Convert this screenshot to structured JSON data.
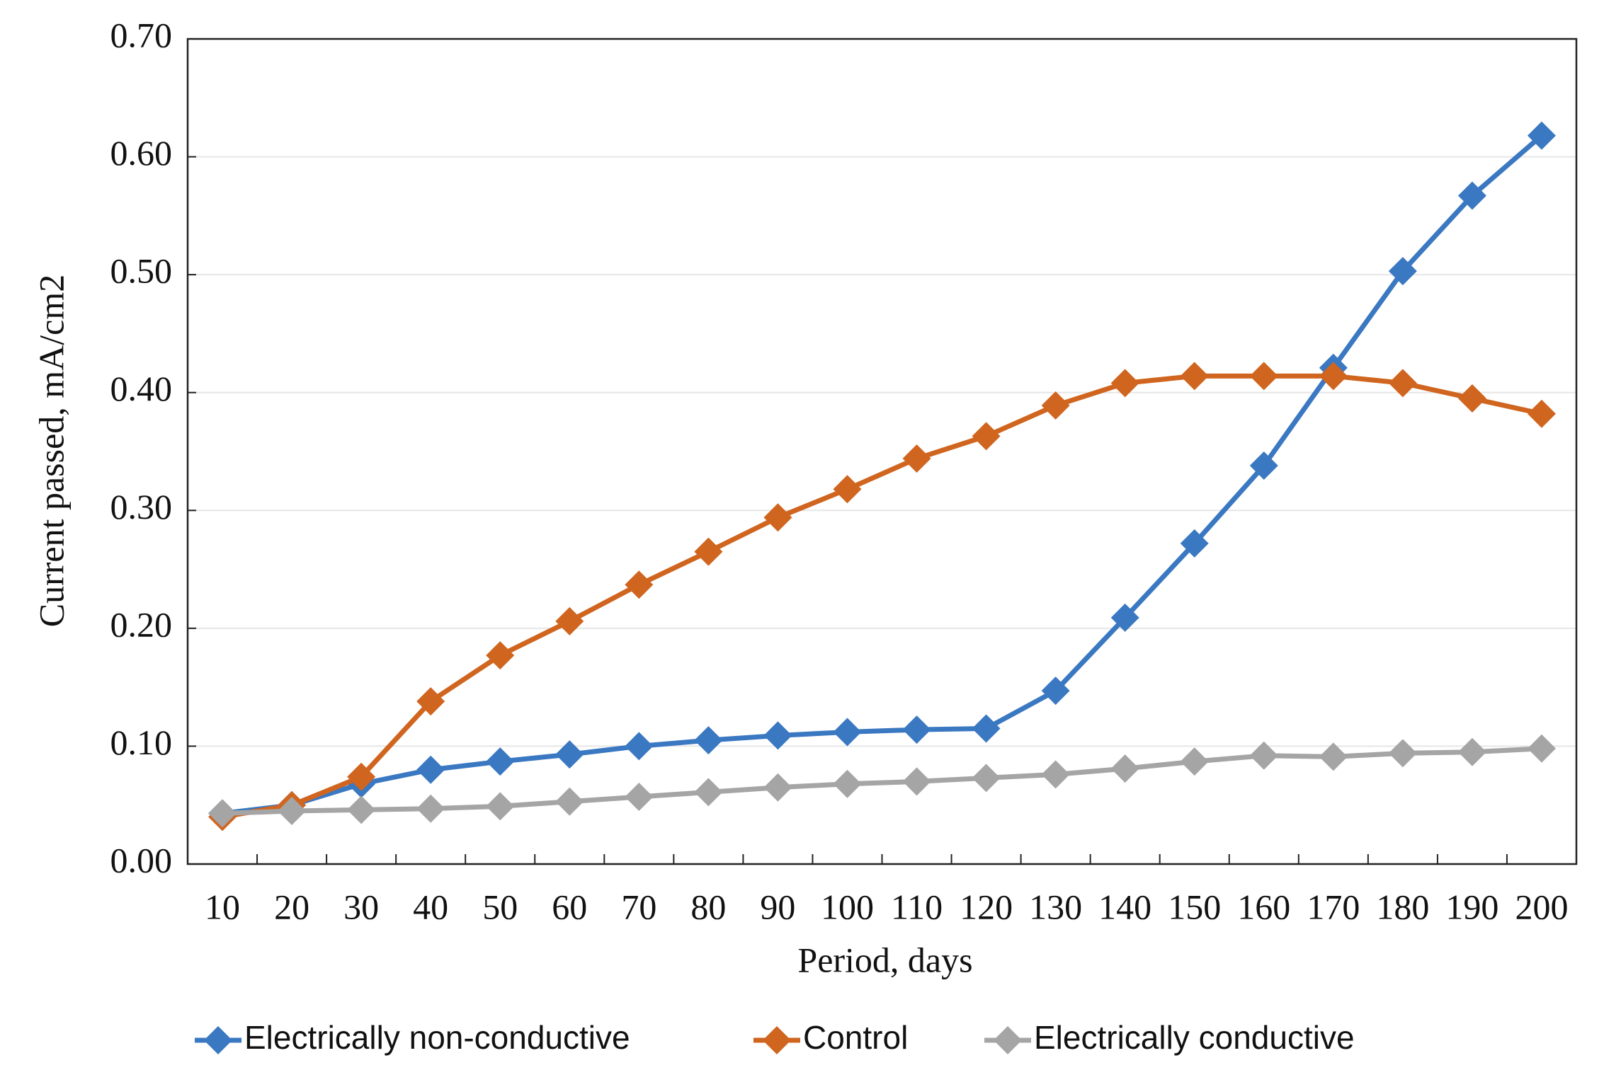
{
  "chart_data": {
    "type": "line",
    "x_label": "Period, days",
    "y_label": "Current passed, mA/cm2",
    "categories": [
      "10",
      "20",
      "30",
      "40",
      "50",
      "60",
      "70",
      "80",
      "90",
      "100",
      "110",
      "120",
      "130",
      "140",
      "150",
      "160",
      "170",
      "180",
      "190",
      "200"
    ],
    "series": [
      {
        "name": "Electrically non-conductive",
        "color": "#3a78c2",
        "values": [
          0.043,
          0.05,
          0.068,
          0.08,
          0.087,
          0.093,
          0.1,
          0.105,
          0.109,
          0.112,
          0.114,
          0.115,
          0.147,
          0.209,
          0.272,
          0.338,
          0.421,
          0.503,
          0.567,
          0.618
        ]
      },
      {
        "name": "Control",
        "color": "#d0651f",
        "values": [
          0.04,
          0.05,
          0.074,
          0.138,
          0.177,
          0.206,
          0.237,
          0.265,
          0.294,
          0.318,
          0.344,
          0.363,
          0.389,
          0.408,
          0.414,
          0.414,
          0.414,
          0.408,
          0.395,
          0.382
        ]
      },
      {
        "name": "Electrically conductive",
        "color": "#a5a5a5",
        "values": [
          0.043,
          0.045,
          0.046,
          0.047,
          0.049,
          0.053,
          0.057,
          0.061,
          0.065,
          0.068,
          0.07,
          0.073,
          0.076,
          0.081,
          0.087,
          0.092,
          0.091,
          0.094,
          0.095,
          0.098
        ]
      }
    ],
    "ylim": [
      0,
      0.7
    ],
    "yticks": [
      {
        "value": 0,
        "label": "0.00"
      },
      {
        "value": 0.1,
        "label": "0.10"
      },
      {
        "value": 0.2,
        "label": "0.20"
      },
      {
        "value": 0.3,
        "label": "0.30"
      },
      {
        "value": 0.4,
        "label": "0.40"
      },
      {
        "value": 0.5,
        "label": "0.50"
      },
      {
        "value": 0.6,
        "label": "0.60"
      },
      {
        "value": 0.7,
        "label": "0.70"
      }
    ],
    "grid": true,
    "legend": "bottom"
  }
}
